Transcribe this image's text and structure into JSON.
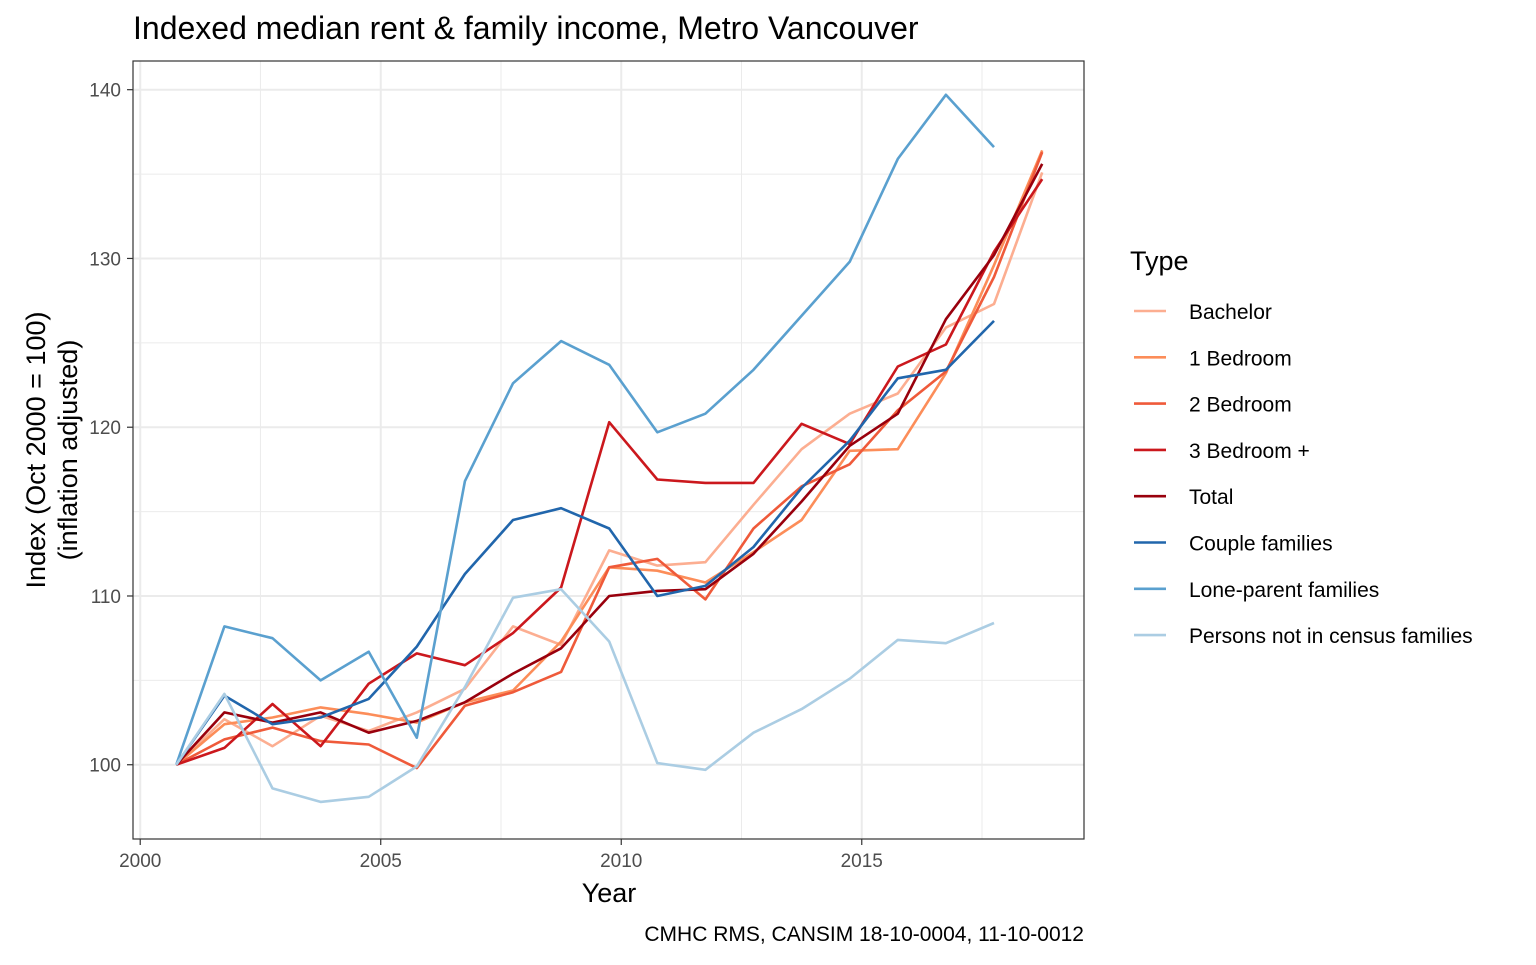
{
  "chart_data": {
    "type": "line",
    "title": "Indexed median rent & family income, Metro Vancouver",
    "xlabel": "Year",
    "ylabel_line1": "Index (Oct 2000 = 100)",
    "ylabel_line2": "(inflation adjusted)",
    "caption": "CMHC RMS, CANSIM 18-10-0004, 11-10-0012",
    "legend_title": "Type",
    "legend_position": "right",
    "grid": true,
    "xlim": [
      1999.85,
      2019.62
    ],
    "ylim": [
      95.6,
      141.7
    ],
    "x_ticks": [
      2000,
      2005,
      2010,
      2015
    ],
    "x_tick_labels": [
      "2000",
      "2005",
      "2010",
      "2015"
    ],
    "y_ticks": [
      100,
      110,
      120,
      130,
      140
    ],
    "y_tick_labels": [
      "100",
      "110",
      "120",
      "130",
      "140"
    ],
    "series": [
      {
        "name": "Bachelor",
        "color": "#FCAE91",
        "x": [
          2000.75,
          2001.75,
          2002.75,
          2003.75,
          2004.75,
          2005.75,
          2006.75,
          2007.75,
          2008.75,
          2009.75,
          2010.75,
          2011.75,
          2012.75,
          2013.75,
          2014.75,
          2015.75,
          2016.75,
          2017.75,
          2018.75
        ],
        "y": [
          100.0,
          102.7,
          101.1,
          102.9,
          102.0,
          103.1,
          104.5,
          108.2,
          107.1,
          112.7,
          111.8,
          112.0,
          115.4,
          118.7,
          120.8,
          122.0,
          125.9,
          127.3,
          135.1
        ]
      },
      {
        "name": "1 Bedroom",
        "color": "#FC8D59",
        "x": [
          2000.75,
          2001.75,
          2002.75,
          2003.75,
          2004.75,
          2005.75,
          2006.75,
          2007.75,
          2008.75,
          2009.75,
          2010.75,
          2011.75,
          2012.75,
          2013.75,
          2014.75,
          2015.75,
          2016.75,
          2017.75,
          2018.75
        ],
        "y": [
          100.0,
          102.4,
          102.8,
          103.4,
          103.0,
          102.5,
          103.7,
          104.4,
          107.3,
          111.7,
          111.5,
          110.8,
          112.6,
          114.5,
          118.6,
          118.7,
          123.2,
          129.6,
          136.4
        ]
      },
      {
        "name": "2 Bedroom",
        "color": "#EF5A3A",
        "x": [
          2000.75,
          2001.75,
          2002.75,
          2003.75,
          2004.75,
          2005.75,
          2006.75,
          2007.75,
          2008.75,
          2009.75,
          2010.75,
          2011.75,
          2012.75,
          2013.75,
          2014.75,
          2015.75,
          2016.75,
          2017.75,
          2018.75
        ],
        "y": [
          100.0,
          101.5,
          102.2,
          101.4,
          101.2,
          99.8,
          103.5,
          104.3,
          105.5,
          111.7,
          112.2,
          109.8,
          114.0,
          116.5,
          117.8,
          121.0,
          123.3,
          128.9,
          136.3
        ]
      },
      {
        "name": "3 Bedroom +",
        "color": "#CB181D",
        "x": [
          2000.75,
          2001.75,
          2002.75,
          2003.75,
          2004.75,
          2005.75,
          2006.75,
          2007.75,
          2008.75,
          2009.75,
          2010.75,
          2011.75,
          2012.75,
          2013.75,
          2014.75,
          2015.75,
          2016.75,
          2017.75,
          2018.75
        ],
        "y": [
          100.0,
          101.0,
          103.6,
          101.1,
          104.8,
          106.6,
          105.9,
          107.8,
          110.5,
          120.3,
          116.9,
          116.7,
          116.7,
          120.2,
          119.0,
          123.6,
          124.9,
          130.4,
          134.7
        ]
      },
      {
        "name": "Total",
        "color": "#99000D",
        "x": [
          2000.75,
          2001.75,
          2002.75,
          2003.75,
          2004.75,
          2005.75,
          2006.75,
          2007.75,
          2008.75,
          2009.75,
          2010.75,
          2011.75,
          2012.75,
          2013.75,
          2014.75,
          2015.75,
          2016.75,
          2017.75,
          2018.75
        ],
        "y": [
          100.0,
          103.1,
          102.5,
          103.1,
          101.9,
          102.6,
          103.7,
          105.4,
          106.9,
          110.0,
          110.3,
          110.4,
          112.5,
          115.6,
          118.9,
          120.8,
          126.4,
          130.2,
          135.6
        ]
      },
      {
        "name": "Couple families",
        "color": "#2166AC",
        "x": [
          2000.75,
          2001.75,
          2002.75,
          2003.75,
          2004.75,
          2005.75,
          2006.75,
          2007.75,
          2008.75,
          2009.75,
          2010.75,
          2011.75,
          2012.75,
          2013.75,
          2014.75,
          2015.75,
          2016.75,
          2017.75
        ],
        "y": [
          100.0,
          104.1,
          102.4,
          102.8,
          103.9,
          107.0,
          111.3,
          114.5,
          115.2,
          114.0,
          110.0,
          110.6,
          112.9,
          116.4,
          119.2,
          122.9,
          123.4,
          126.3
        ]
      },
      {
        "name": "Lone-parent families",
        "color": "#5AA0CF",
        "x": [
          2000.75,
          2001.75,
          2002.75,
          2003.75,
          2004.75,
          2005.75,
          2006.75,
          2007.75,
          2008.75,
          2009.75,
          2010.75,
          2011.75,
          2012.75,
          2013.75,
          2014.75,
          2015.75,
          2016.75,
          2017.75
        ],
        "y": [
          100.0,
          108.2,
          107.5,
          105.0,
          106.7,
          101.6,
          116.8,
          122.6,
          125.1,
          123.7,
          119.7,
          120.8,
          123.4,
          126.6,
          129.8,
          135.9,
          139.7,
          136.6
        ]
      },
      {
        "name": "Persons not in census families",
        "color": "#ABCDE3",
        "x": [
          2000.75,
          2001.75,
          2002.75,
          2003.75,
          2004.75,
          2005.75,
          2006.75,
          2007.75,
          2008.75,
          2009.75,
          2010.75,
          2011.75,
          2012.75,
          2013.75,
          2014.75,
          2015.75,
          2016.75,
          2017.75
        ],
        "y": [
          100.0,
          104.2,
          98.6,
          97.8,
          98.1,
          99.9,
          104.6,
          109.9,
          110.4,
          107.3,
          100.1,
          99.7,
          101.9,
          103.3,
          105.1,
          107.4,
          107.2,
          108.4
        ]
      }
    ]
  }
}
